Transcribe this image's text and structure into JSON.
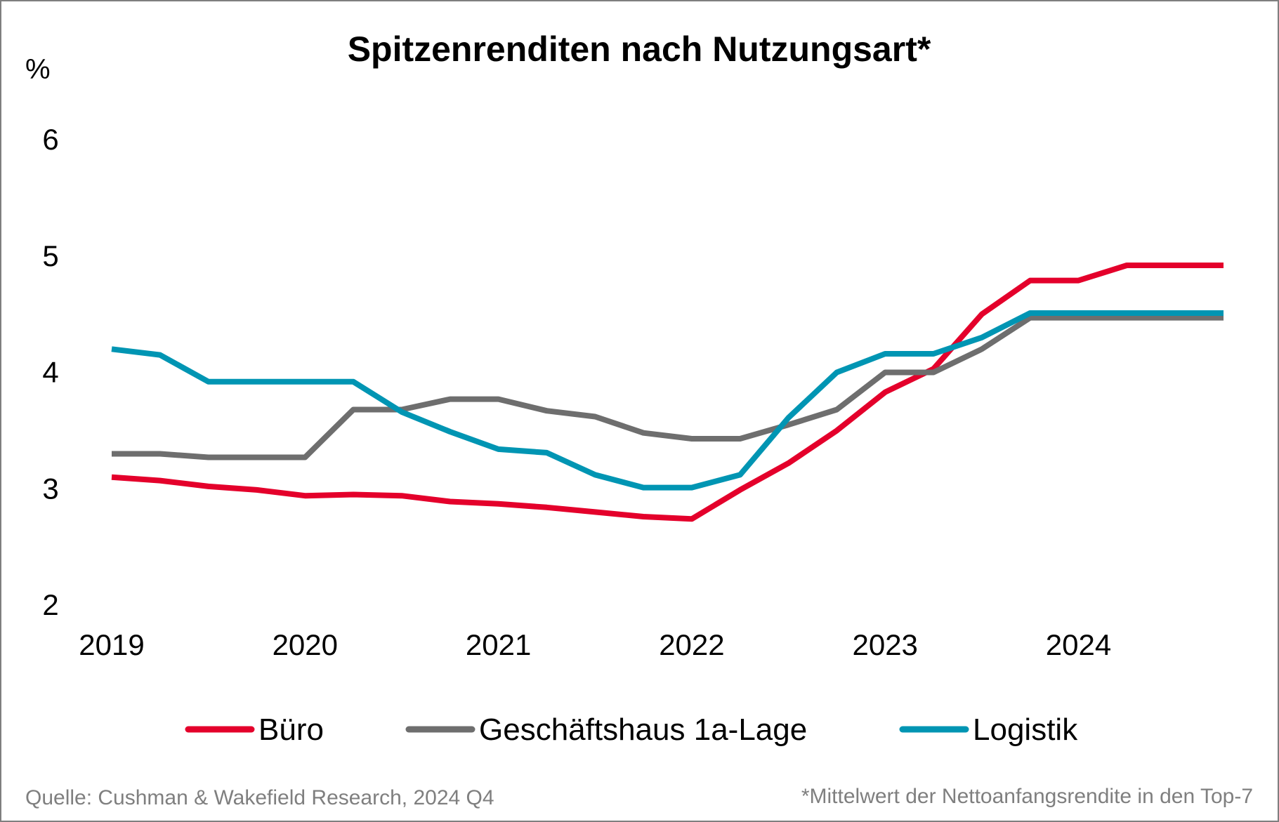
{
  "chart_data": {
    "type": "line",
    "title": "Spitzenrenditen nach Nutzungsart*",
    "ylabel": "%",
    "ylim": [
      2,
      6
    ],
    "yticks": [
      "2",
      "3",
      "4",
      "5",
      "6"
    ],
    "xlim": [
      2019.0,
      2024.75
    ],
    "xticks": [
      "2019",
      "2020",
      "2021",
      "2022",
      "2023",
      "2024"
    ],
    "grid": false,
    "legend_position": "bottom",
    "x": [
      2019.0,
      2019.25,
      2019.5,
      2019.75,
      2020.0,
      2020.25,
      2020.5,
      2020.75,
      2021.0,
      2021.25,
      2021.5,
      2021.75,
      2022.0,
      2022.25,
      2022.5,
      2022.75,
      2023.0,
      2023.25,
      2023.5,
      2023.75,
      2024.0,
      2024.25,
      2024.5,
      2024.75
    ],
    "series": [
      {
        "name": "Büro",
        "color": "#e4002b",
        "values": [
          3.1,
          3.07,
          3.02,
          2.99,
          2.94,
          2.95,
          2.94,
          2.89,
          2.87,
          2.84,
          2.8,
          2.76,
          2.74,
          2.99,
          3.22,
          3.5,
          3.83,
          4.03,
          4.5,
          4.79,
          4.79,
          4.92,
          4.92,
          4.92
        ]
      },
      {
        "name": "Geschäftshaus 1a-Lage",
        "color": "#6e6e6e",
        "values": [
          3.3,
          3.3,
          3.27,
          3.27,
          3.27,
          3.68,
          3.68,
          3.77,
          3.77,
          3.67,
          3.62,
          3.48,
          3.43,
          3.43,
          3.55,
          3.68,
          4.0,
          4.0,
          4.2,
          4.47,
          4.47,
          4.47,
          4.47,
          4.47
        ]
      },
      {
        "name": "Logistik",
        "color": "#0095b3",
        "values": [
          4.2,
          4.15,
          3.92,
          3.92,
          3.92,
          3.92,
          3.66,
          3.49,
          3.34,
          3.31,
          3.12,
          3.01,
          3.01,
          3.12,
          3.61,
          4.0,
          4.16,
          4.16,
          4.3,
          4.51,
          4.51,
          4.51,
          4.51,
          4.51
        ]
      }
    ]
  },
  "footer": {
    "source": "Quelle: Cushman & Wakefield Research, 2024 Q4",
    "note": "*Mittelwert der Nettoanfangsrendite in den Top-7"
  }
}
